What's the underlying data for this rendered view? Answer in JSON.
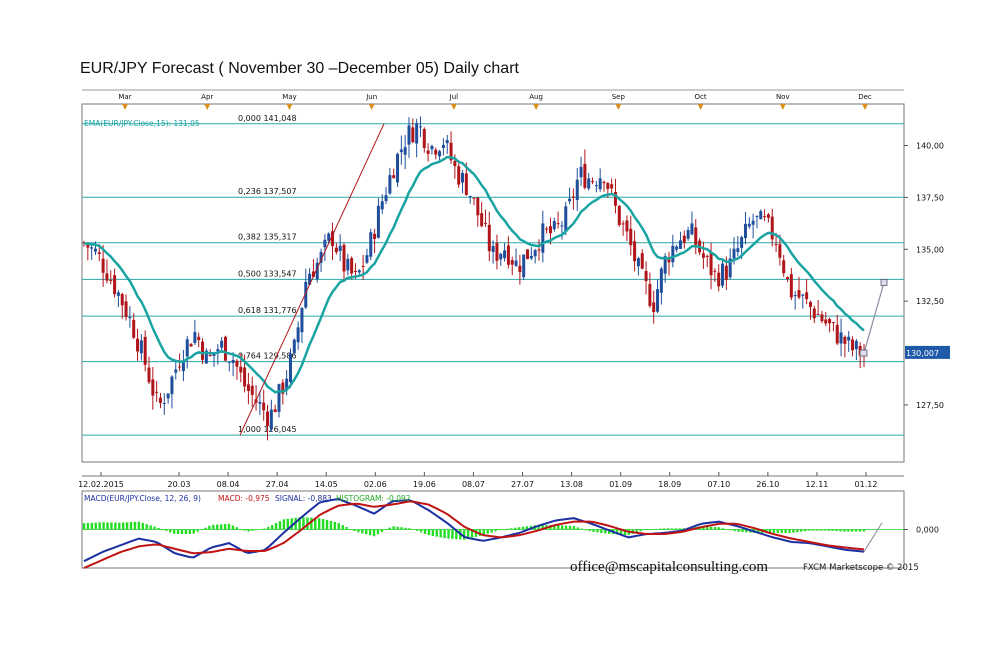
{
  "page": {
    "title": "EUR/JPY Forecast ( November 30 –December 05) Daily chart",
    "email": "office@mscapitalconsulting.com",
    "credit": "FXCM Marketscope © 2015"
  },
  "colors": {
    "up_candle": "#1f4e9c",
    "down_candle": "#b0151a",
    "ema": "#1aa3a3",
    "fib_line": "#2aa7a7",
    "macd_line": "#1c2fa0",
    "signal_line": "#c01414",
    "histogram": "#22dd22",
    "last_price_box": "#1e5aa8",
    "month_marker": "#d9901f"
  },
  "chart_data": [
    {
      "type": "candlestick",
      "title": "",
      "ema_label": "EMA(EUR/JPY.Close,15): 131,05",
      "top_month_labels": [
        "Mar",
        "Apr",
        "May",
        "Jun",
        "Jul",
        "Aug",
        "Sep",
        "Oct",
        "Nov",
        "Dec"
      ],
      "x_tick_labels": [
        "12.02.2015",
        "20.03",
        "08.04",
        "27.04",
        "14.05",
        "02.06",
        "19.06",
        "08.07",
        "27.07",
        "13.08",
        "01.09",
        "18.09",
        "07.10",
        "26.10",
        "12.11",
        "01.12"
      ],
      "y_tick_labels": [
        "140,00",
        "137,50",
        "135,00",
        "132,50",
        "127,50"
      ],
      "y_ticks": [
        140.0,
        137.5,
        135.0,
        132.5,
        127.5
      ],
      "ylim": [
        124.75,
        142.0
      ],
      "last_price": "130,007",
      "fibonacci_levels": [
        {
          "ratio": "0,000",
          "label": "141,048",
          "value": 141.048
        },
        {
          "ratio": "0,236",
          "label": "137,507",
          "value": 137.507
        },
        {
          "ratio": "0,382",
          "label": "135,317",
          "value": 135.317
        },
        {
          "ratio": "0,500",
          "label": "133,547",
          "value": 133.547
        },
        {
          "ratio": "0,618",
          "label": "131,776",
          "value": 131.776
        },
        {
          "ratio": "0,764",
          "label": "129,586",
          "value": 129.586
        },
        {
          "ratio": "1,000",
          "label": "126,045",
          "value": 126.045
        }
      ],
      "close_path": [
        135.3,
        134.8,
        133.8,
        132.6,
        131.2,
        129.4,
        127.3,
        128.6,
        130.2,
        131.0,
        129.6,
        130.4,
        129.8,
        128.4,
        127.6,
        126.9,
        128.3,
        130.2,
        133.8,
        134.4,
        135.7,
        134.2,
        133.5,
        135.0,
        137.2,
        139.0,
        140.4,
        141.0,
        139.9,
        140.3,
        138.8,
        138.0,
        136.4,
        134.7,
        135.1,
        134.2,
        134.9,
        135.7,
        135.8,
        136.6,
        138.6,
        138.4,
        138.7,
        136.8,
        135.4,
        133.6,
        132.4,
        134.6,
        135.5,
        135.8,
        134.6,
        133.7,
        134.0,
        135.2,
        136.4,
        136.2,
        135.4,
        133.0,
        132.6,
        132.0,
        131.4,
        130.8,
        130.2,
        130.0
      ],
      "candle_count": 205,
      "projection": {
        "from": 130.0,
        "to": 133.4
      }
    },
    {
      "type": "line",
      "title": "",
      "indicator_label": "MACD(EUR/JPY.Close, 12, 26, 9)",
      "macd_label": "MACD: -0,975",
      "signal_label": "SIGNAL: -0,883",
      "histogram_label": "HISTOGRAM: -0,092",
      "y_tick_labels": [
        "0,000"
      ],
      "y_ticks": [
        0.0
      ],
      "ylim": [
        -1.7,
        1.7
      ],
      "series": [
        {
          "name": "MACD",
          "path": [
            -1.4,
            -1.0,
            -0.7,
            -0.4,
            -0.55,
            -1.05,
            -1.25,
            -0.8,
            -0.6,
            -1.05,
            -0.9,
            -0.15,
            0.55,
            1.2,
            1.35,
            1.05,
            0.7,
            1.25,
            1.3,
            0.85,
            0.3,
            -0.35,
            -0.5,
            -0.35,
            -0.15,
            0.15,
            0.4,
            0.5,
            0.25,
            -0.05,
            -0.35,
            -0.2,
            -0.15,
            -0.05,
            0.25,
            0.35,
            0.15,
            -0.1,
            -0.35,
            -0.55,
            -0.6,
            -0.75,
            -0.9,
            -0.98
          ]
        },
        {
          "name": "SIGNAL",
          "path": [
            -1.7,
            -1.35,
            -1.0,
            -0.75,
            -0.65,
            -0.85,
            -1.05,
            -1.0,
            -0.85,
            -0.95,
            -0.95,
            -0.6,
            0.0,
            0.65,
            1.05,
            1.15,
            1.0,
            1.1,
            1.25,
            1.1,
            0.7,
            0.1,
            -0.25,
            -0.35,
            -0.25,
            -0.05,
            0.2,
            0.35,
            0.35,
            0.15,
            -0.1,
            -0.2,
            -0.2,
            -0.1,
            0.1,
            0.25,
            0.25,
            0.05,
            -0.2,
            -0.4,
            -0.55,
            -0.7,
            -0.8,
            -0.88
          ]
        }
      ],
      "histogram": [
        0.28,
        0.32,
        0.3,
        0.35,
        0.1,
        -0.2,
        -0.2,
        0.2,
        0.25,
        -0.1,
        0.05,
        0.45,
        0.55,
        0.5,
        0.3,
        -0.1,
        -0.3,
        0.15,
        0.05,
        -0.25,
        -0.4,
        -0.45,
        -0.25,
        0.0,
        0.1,
        0.2,
        0.2,
        0.15,
        -0.1,
        -0.2,
        -0.25,
        0.0,
        0.05,
        0.05,
        0.15,
        0.1,
        -0.1,
        -0.15,
        -0.15,
        -0.15,
        -0.05,
        -0.05,
        -0.1,
        -0.09
      ],
      "projection": {
        "from": -0.98,
        "to": 0.3
      }
    }
  ]
}
